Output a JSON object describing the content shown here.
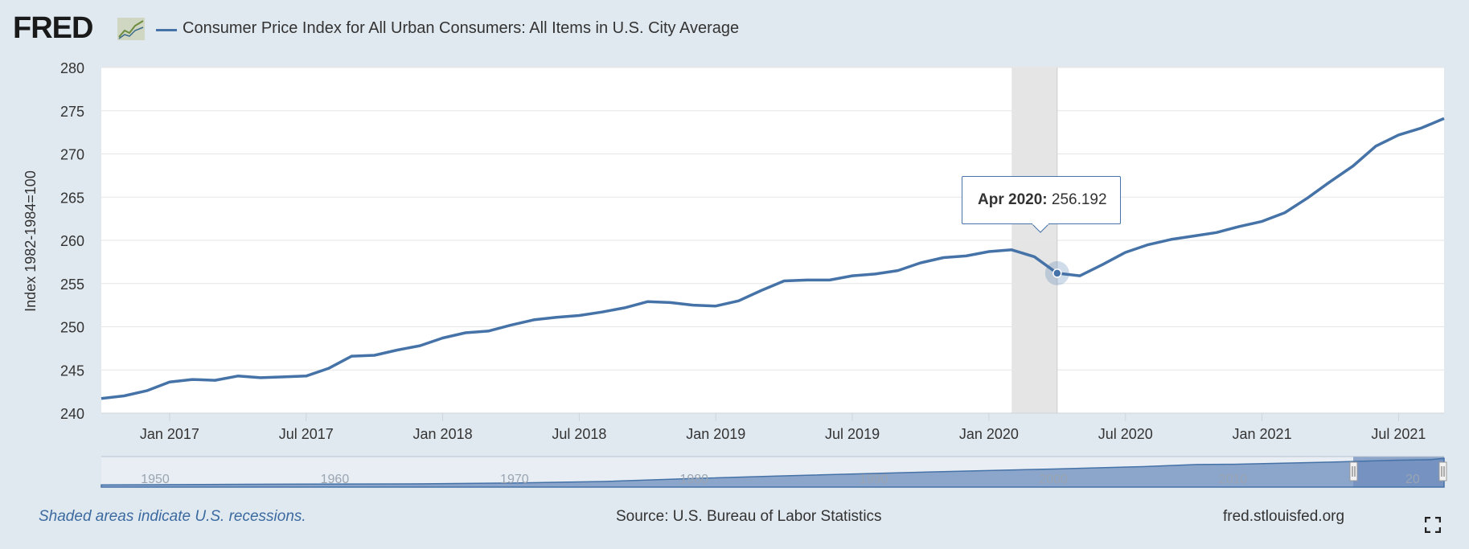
{
  "header": {
    "logo_text": "FRED",
    "series_title": "Consumer Price Index for All Urban Consumers: All Items in U.S. City Average"
  },
  "chart_data": {
    "type": "line",
    "title": "Consumer Price Index for All Urban Consumers: All Items in U.S. City Average",
    "ylabel": "Index 1982-1984=100",
    "xlabel": "",
    "ylim": [
      240,
      280
    ],
    "yticks": [
      240,
      245,
      250,
      255,
      260,
      265,
      270,
      275,
      280
    ],
    "xtick_labels": [
      "Jan 2017",
      "Jul 2017",
      "Jan 2018",
      "Jul 2018",
      "Jan 2019",
      "Jul 2019",
      "Jan 2020",
      "Jul 2020",
      "Jan 2021",
      "Jul 2021"
    ],
    "x_start": "2016-10",
    "x_end": "2021-09",
    "grid": true,
    "legend": "top-left",
    "series_color": "#4572a7",
    "recession": {
      "start": "2020-02",
      "end": "2020-04"
    },
    "series": [
      {
        "name": "Consumer Price Index for All Urban Consumers: All Items in U.S. City Average",
        "x": [
          "2016-10",
          "2016-11",
          "2016-12",
          "2017-01",
          "2017-02",
          "2017-03",
          "2017-04",
          "2017-05",
          "2017-06",
          "2017-07",
          "2017-08",
          "2017-09",
          "2017-10",
          "2017-11",
          "2017-12",
          "2018-01",
          "2018-02",
          "2018-03",
          "2018-04",
          "2018-05",
          "2018-06",
          "2018-07",
          "2018-08",
          "2018-09",
          "2018-10",
          "2018-11",
          "2018-12",
          "2019-01",
          "2019-02",
          "2019-03",
          "2019-04",
          "2019-05",
          "2019-06",
          "2019-07",
          "2019-08",
          "2019-09",
          "2019-10",
          "2019-11",
          "2019-12",
          "2020-01",
          "2020-02",
          "2020-03",
          "2020-04",
          "2020-05",
          "2020-06",
          "2020-07",
          "2020-08",
          "2020-09",
          "2020-10",
          "2020-11",
          "2020-12",
          "2021-01",
          "2021-02",
          "2021-03",
          "2021-04",
          "2021-05",
          "2021-06",
          "2021-07",
          "2021-08",
          "2021-09"
        ],
        "values": [
          241.7,
          242.0,
          242.6,
          243.6,
          243.9,
          243.8,
          244.3,
          244.1,
          244.2,
          244.3,
          245.2,
          246.6,
          246.7,
          247.3,
          247.8,
          248.7,
          249.3,
          249.5,
          250.2,
          250.8,
          251.1,
          251.3,
          251.7,
          252.2,
          252.9,
          252.8,
          252.5,
          252.4,
          253.0,
          254.2,
          255.3,
          255.4,
          255.4,
          255.9,
          256.1,
          256.5,
          257.4,
          258.0,
          258.2,
          258.7,
          258.9,
          258.1,
          256.192,
          255.9,
          257.2,
          258.6,
          259.5,
          260.1,
          260.5,
          260.9,
          261.6,
          262.2,
          263.2,
          264.9,
          266.8,
          268.6,
          270.9,
          272.2,
          273.0,
          274.1
        ]
      }
    ],
    "tooltip": {
      "date_label": "Apr 2020:",
      "value_label": "256.192"
    }
  },
  "navigator": {
    "year_labels": [
      "1950",
      "1960",
      "1970",
      "1980",
      "1990",
      "2000",
      "2010",
      "20"
    ]
  },
  "footer": {
    "recession_note": "Shaded areas indicate U.S. recessions.",
    "source": "Source: U.S. Bureau of Labor Statistics",
    "site": "fred.stlouisfed.org"
  }
}
